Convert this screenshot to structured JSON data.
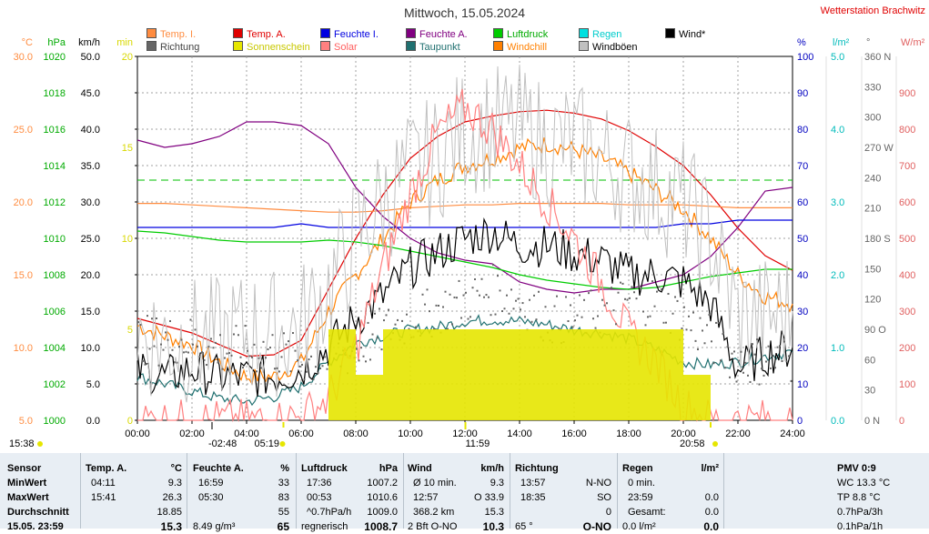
{
  "title": "Mittwoch, 15.05.2024",
  "station": "Wetterstation Brachwitz",
  "legend": [
    {
      "label": "Temp. I.",
      "color": "#ff8c40",
      "text_color": "#ff8c40"
    },
    {
      "label": "Richtung",
      "color": "#666666",
      "text_color": "#444444"
    },
    {
      "label": "Temp. A.",
      "color": "#e00000",
      "text_color": "#e00000"
    },
    {
      "label": "Sonnenschein",
      "color": "#e6e600",
      "text_color": "#c8c800"
    },
    {
      "label": "Feuchte I.",
      "color": "#0000e0",
      "text_color": "#0000e0"
    },
    {
      "label": "Solar",
      "color": "#ff8080",
      "text_color": "#ff6060"
    },
    {
      "label": "Feuchte A.",
      "color": "#800080",
      "text_color": "#800080"
    },
    {
      "label": "Taupunkt",
      "color": "#207070",
      "text_color": "#207070"
    },
    {
      "label": "Luftdruck",
      "color": "#00cc00",
      "text_color": "#00aa00"
    },
    {
      "label": "Windchill",
      "color": "#ff8000",
      "text_color": "#ff8000"
    },
    {
      "label": "Regen",
      "color": "#00e0e0",
      "text_color": "#00cccc"
    },
    {
      "label": "Windböen",
      "color": "#c0c0c0",
      "text_color": "#000000"
    },
    {
      "label": "Wind*",
      "color": "#000000",
      "text_color": "#000000"
    }
  ],
  "axes": {
    "temp": {
      "unit": "°C",
      "ticks": [
        "30.0",
        "25.0",
        "20.0",
        "15.0",
        "10.0",
        "5.0"
      ],
      "color": "#ff8c40"
    },
    "hpa": {
      "unit": "hPa",
      "ticks": [
        "1020",
        "1018",
        "1016",
        "1014",
        "1012",
        "1010",
        "1008",
        "1006",
        "1004",
        "1002",
        "1000"
      ],
      "color": "#00aa00"
    },
    "kmh": {
      "unit": "km/h",
      "ticks": [
        "50.0",
        "45.0",
        "40.0",
        "35.0",
        "30.0",
        "25.0",
        "20.0",
        "15.0",
        "10.0",
        "5.0",
        "0.0"
      ],
      "color": "#000000"
    },
    "min": {
      "unit": "min",
      "ticks": [
        "20",
        "15",
        "10",
        "5",
        "0"
      ],
      "color": "#d8d800"
    },
    "pct": {
      "unit": "%",
      "ticks": [
        "100",
        "90",
        "80",
        "70",
        "60",
        "50",
        "40",
        "30",
        "20",
        "10",
        "0"
      ],
      "color": "#0000c0"
    },
    "rain": {
      "unit": "l/m²",
      "ticks": [
        "5.0",
        "4.0",
        "3.0",
        "2.0",
        "1.0",
        "0.0"
      ],
      "color": "#00bbbb"
    },
    "deg": {
      "unit": "°",
      "ticks": [
        "360 N",
        "330",
        "300",
        "270 W",
        "240",
        "210",
        "180 S",
        "150",
        "120",
        "90 O",
        "60",
        "30",
        "0 N"
      ],
      "color": "#666666"
    },
    "wm2": {
      "unit": "W/m²",
      "ticks": [
        "900",
        "800",
        "700",
        "600",
        "500",
        "400",
        "300",
        "200",
        "100",
        "0"
      ],
      "color": "#e06060"
    },
    "time": [
      "00:00",
      "02:00",
      "04:00",
      "06:00",
      "08:00",
      "10:00",
      "12:00",
      "14:00",
      "16:00",
      "18:00",
      "20:00",
      "22:00",
      "24:00"
    ]
  },
  "sun_marks": {
    "sunrise": "05:19",
    "noon": "11:59",
    "sunset": "20:58",
    "moonrise": "15:38",
    "moonset": "-02:48"
  },
  "chart_data": {
    "type": "line",
    "x_label": "",
    "x": [
      "00:00",
      "01:00",
      "02:00",
      "03:00",
      "04:00",
      "05:00",
      "06:00",
      "07:00",
      "08:00",
      "09:00",
      "10:00",
      "11:00",
      "12:00",
      "13:00",
      "14:00",
      "15:00",
      "16:00",
      "17:00",
      "18:00",
      "19:00",
      "20:00",
      "21:00",
      "22:00",
      "23:00",
      "24:00"
    ],
    "series": [
      {
        "name": "Temp. A.",
        "axis": "temp",
        "color": "#e00000",
        "values": [
          12.0,
          11.5,
          11.0,
          10.2,
          9.4,
          9.5,
          10.5,
          14.0,
          17.5,
          20.5,
          23.0,
          24.5,
          25.5,
          25.9,
          26.2,
          26.3,
          26.1,
          25.7,
          24.9,
          23.8,
          22.5,
          20.5,
          18.2,
          16.3,
          15.3
        ]
      },
      {
        "name": "Temp. I.",
        "axis": "temp",
        "color": "#ff8c40",
        "values": [
          19.9,
          19.9,
          19.8,
          19.7,
          19.6,
          19.5,
          19.4,
          19.3,
          19.3,
          19.4,
          19.6,
          19.7,
          19.8,
          19.8,
          19.9,
          19.9,
          19.9,
          19.9,
          19.8,
          19.8,
          19.8,
          19.7,
          19.6,
          19.6,
          19.6
        ]
      },
      {
        "name": "Windchill",
        "axis": "temp",
        "color": "#ff8000",
        "values": [
          11.5,
          10.8,
          10.2,
          9.0,
          8.0,
          8.0,
          9.0,
          12.5,
          15.0,
          17.5,
          20.0,
          21.5,
          22.5,
          23.0,
          23.7,
          24.0,
          23.6,
          23.0,
          22.0,
          20.8,
          19.5,
          17.5,
          15.0,
          13.5,
          13.0
        ]
      },
      {
        "name": "Feuchte A.",
        "axis": "pct",
        "color": "#800080",
        "values": [
          77,
          75,
          76,
          78,
          82,
          82,
          81,
          76,
          64,
          56,
          50,
          46,
          44,
          43,
          38,
          36,
          35,
          36,
          36,
          38,
          40,
          45,
          53,
          63,
          64
        ]
      },
      {
        "name": "Feuchte I.",
        "axis": "pct",
        "color": "#0000e0",
        "values": [
          53,
          53,
          53,
          53,
          53,
          53,
          54,
          53,
          53,
          53,
          53,
          53,
          53,
          53,
          53,
          53,
          53,
          53,
          53,
          53,
          54,
          54,
          55,
          55,
          55
        ]
      },
      {
        "name": "Luftdruck",
        "axis": "hpa",
        "color": "#00cc00",
        "values": [
          1010.4,
          1010.3,
          1010.1,
          1009.9,
          1009.8,
          1009.8,
          1009.8,
          1009.9,
          1009.8,
          1009.6,
          1009.3,
          1009.0,
          1008.7,
          1008.4,
          1008.0,
          1007.7,
          1007.5,
          1007.3,
          1007.2,
          1007.3,
          1007.6,
          1007.9,
          1008.1,
          1008.3,
          1008.3
        ]
      },
      {
        "name": "Taupunkt",
        "axis": "temp",
        "color": "#207070",
        "values": [
          8.0,
          7.5,
          7.0,
          6.5,
          6.3,
          6.6,
          7.3,
          9.0,
          10.3,
          10.8,
          11.2,
          11.4,
          11.8,
          11.9,
          11.8,
          11.6,
          11.2,
          11.0,
          10.6,
          9.9,
          9.0,
          8.8,
          9.0,
          9.4,
          9.7
        ]
      },
      {
        "name": "Wind*",
        "axis": "kmh",
        "color": "#000000",
        "values": [
          7.0,
          6.0,
          7.0,
          6.0,
          6.0,
          6.0,
          7.0,
          10.0,
          14.0,
          17.0,
          21.0,
          23.0,
          25.0,
          26.0,
          24.0,
          24.0,
          23.0,
          22.0,
          20.0,
          20.0,
          19.0,
          16.0,
          7.0,
          9.0,
          10.0
        ]
      },
      {
        "name": "Windböen",
        "axis": "kmh",
        "color": "#c0c0c0",
        "values": [
          12,
          11,
          11,
          11,
          12,
          12,
          13,
          18,
          25,
          30,
          34,
          36,
          40,
          40,
          40,
          38,
          38,
          36,
          34,
          32,
          30,
          25,
          14,
          14,
          15
        ]
      },
      {
        "name": "Solar",
        "axis": "wm2",
        "color": "#ff8080",
        "values": [
          0,
          0,
          0,
          0,
          0,
          0,
          10,
          60,
          200,
          420,
          620,
          790,
          860,
          800,
          700,
          600,
          500,
          380,
          240,
          160,
          40,
          0,
          0,
          0,
          0
        ]
      },
      {
        "name": "Richtung",
        "axis": "deg",
        "color": "#666666",
        "values": [
          80,
          80,
          80,
          70,
          70,
          70,
          60,
          60,
          70,
          90,
          100,
          110,
          120,
          130,
          120,
          100,
          100,
          110,
          120,
          120,
          100,
          80,
          60,
          60,
          60
        ]
      },
      {
        "name": "Sonnenschein",
        "axis": "min",
        "color": "#e6e600",
        "values": [
          0,
          0,
          0,
          0,
          0,
          0,
          0,
          2,
          1,
          2,
          2,
          2,
          2,
          2,
          2,
          2,
          2,
          2,
          2,
          2,
          1,
          0,
          0,
          0,
          0
        ]
      },
      {
        "name": "Regen",
        "axis": "rain",
        "color": "#00e0e0",
        "values": [
          0,
          0,
          0,
          0,
          0,
          0,
          0,
          0,
          0,
          0,
          0,
          0,
          0,
          0,
          0,
          0,
          0,
          0,
          0,
          0,
          0,
          0,
          0,
          0,
          0
        ]
      }
    ]
  },
  "stats": {
    "sensor": {
      "header": "Sensor",
      "rows": [
        "MinWert",
        "MaxWert",
        "Durchschnitt",
        "15.05. 23:59"
      ]
    },
    "temp_a": {
      "header": "Temp. A.",
      "unit": "°C",
      "rows": [
        [
          "04:11",
          "9.3"
        ],
        [
          "15:41",
          "26.3"
        ],
        [
          "",
          "18.85"
        ],
        [
          "",
          "15.3"
        ]
      ]
    },
    "feuchte_a": {
      "header": "Feuchte A.",
      "unit": "%",
      "rows": [
        [
          "16:59",
          "33"
        ],
        [
          "05:30",
          "83"
        ],
        [
          "",
          "55"
        ],
        [
          "8.49 g/m³",
          "65"
        ]
      ]
    },
    "luftdruck": {
      "header": "Luftdruck",
      "unit": "hPa",
      "rows": [
        [
          "17:36",
          "1007.2"
        ],
        [
          "00:53",
          "1010.6"
        ],
        [
          "^0.7hPa/h",
          "1009.0"
        ],
        [
          "regnerisch",
          "1008.7"
        ]
      ]
    },
    "wind": {
      "header": "Wind",
      "unit": "km/h",
      "rows": [
        [
          "Ø 10 min.",
          "9.3"
        ],
        [
          "12:57",
          "O 33.9"
        ],
        [
          "368.2 km",
          "15.3"
        ],
        [
          "2 Bft O-NO",
          "10.3"
        ]
      ]
    },
    "richtung": {
      "header": "Richtung",
      "unit": "",
      "rows": [
        [
          "13:57",
          "N-NO"
        ],
        [
          "18:35",
          "SO"
        ],
        [
          "",
          "0"
        ],
        [
          "65 °",
          "O-NO"
        ]
      ]
    },
    "regen": {
      "header": "Regen",
      "unit": "l/m²",
      "rows": [
        [
          "0 min.",
          ""
        ],
        [
          "23:59",
          "0.0"
        ],
        [
          "Gesamt:",
          "0.0"
        ],
        [
          "0.0 l/m²",
          "0.0"
        ]
      ]
    },
    "pmv": {
      "header": "PMV 0:9",
      "rows": [
        "WC 13.3 °C",
        "TP 8.8 °C",
        "0.7hPa/3h",
        "0.1hPa/1h"
      ]
    }
  }
}
